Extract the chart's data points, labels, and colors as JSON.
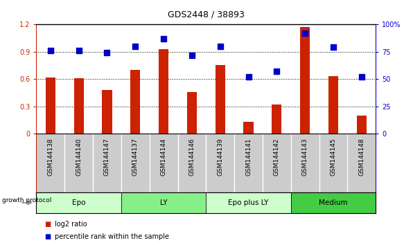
{
  "title": "GDS2448 / 38893",
  "categories": [
    "GSM144138",
    "GSM144140",
    "GSM144147",
    "GSM144137",
    "GSM144144",
    "GSM144146",
    "GSM144139",
    "GSM144141",
    "GSM144142",
    "GSM144143",
    "GSM144145",
    "GSM144148"
  ],
  "log2_ratio": [
    0.62,
    0.61,
    0.48,
    0.7,
    0.93,
    0.46,
    0.75,
    0.13,
    0.32,
    1.17,
    0.63,
    0.2
  ],
  "percentile_rank": [
    76,
    76,
    74,
    80,
    87,
    72,
    80,
    52,
    57,
    92,
    79,
    52
  ],
  "bar_color": "#cc2200",
  "dot_color": "#0000cc",
  "groups": [
    {
      "label": "Epo",
      "start": 0,
      "end": 3,
      "color": "#ccffcc"
    },
    {
      "label": "LY",
      "start": 3,
      "end": 6,
      "color": "#88ee88"
    },
    {
      "label": "Epo plus LY",
      "start": 6,
      "end": 9,
      "color": "#ccffcc"
    },
    {
      "label": "Medium",
      "start": 9,
      "end": 12,
      "color": "#44cc44"
    }
  ],
  "ylim_left": [
    0,
    1.2
  ],
  "ylim_right": [
    0,
    100
  ],
  "yticks_left": [
    0,
    0.3,
    0.6,
    0.9,
    1.2
  ],
  "yticks_right": [
    0,
    25,
    50,
    75,
    100
  ],
  "ytick_labels_left": [
    "0",
    "0.3",
    "0.6",
    "0.9",
    "1.2"
  ],
  "ytick_labels_right": [
    "0",
    "25",
    "50",
    "75",
    "100%"
  ],
  "legend_log2": "log2 ratio",
  "legend_pct": "percentile rank within the sample",
  "group_label": "growth protocol",
  "background_color": "#ffffff",
  "tick_area_color": "#cccccc",
  "bar_width": 0.35,
  "dot_size": 28
}
